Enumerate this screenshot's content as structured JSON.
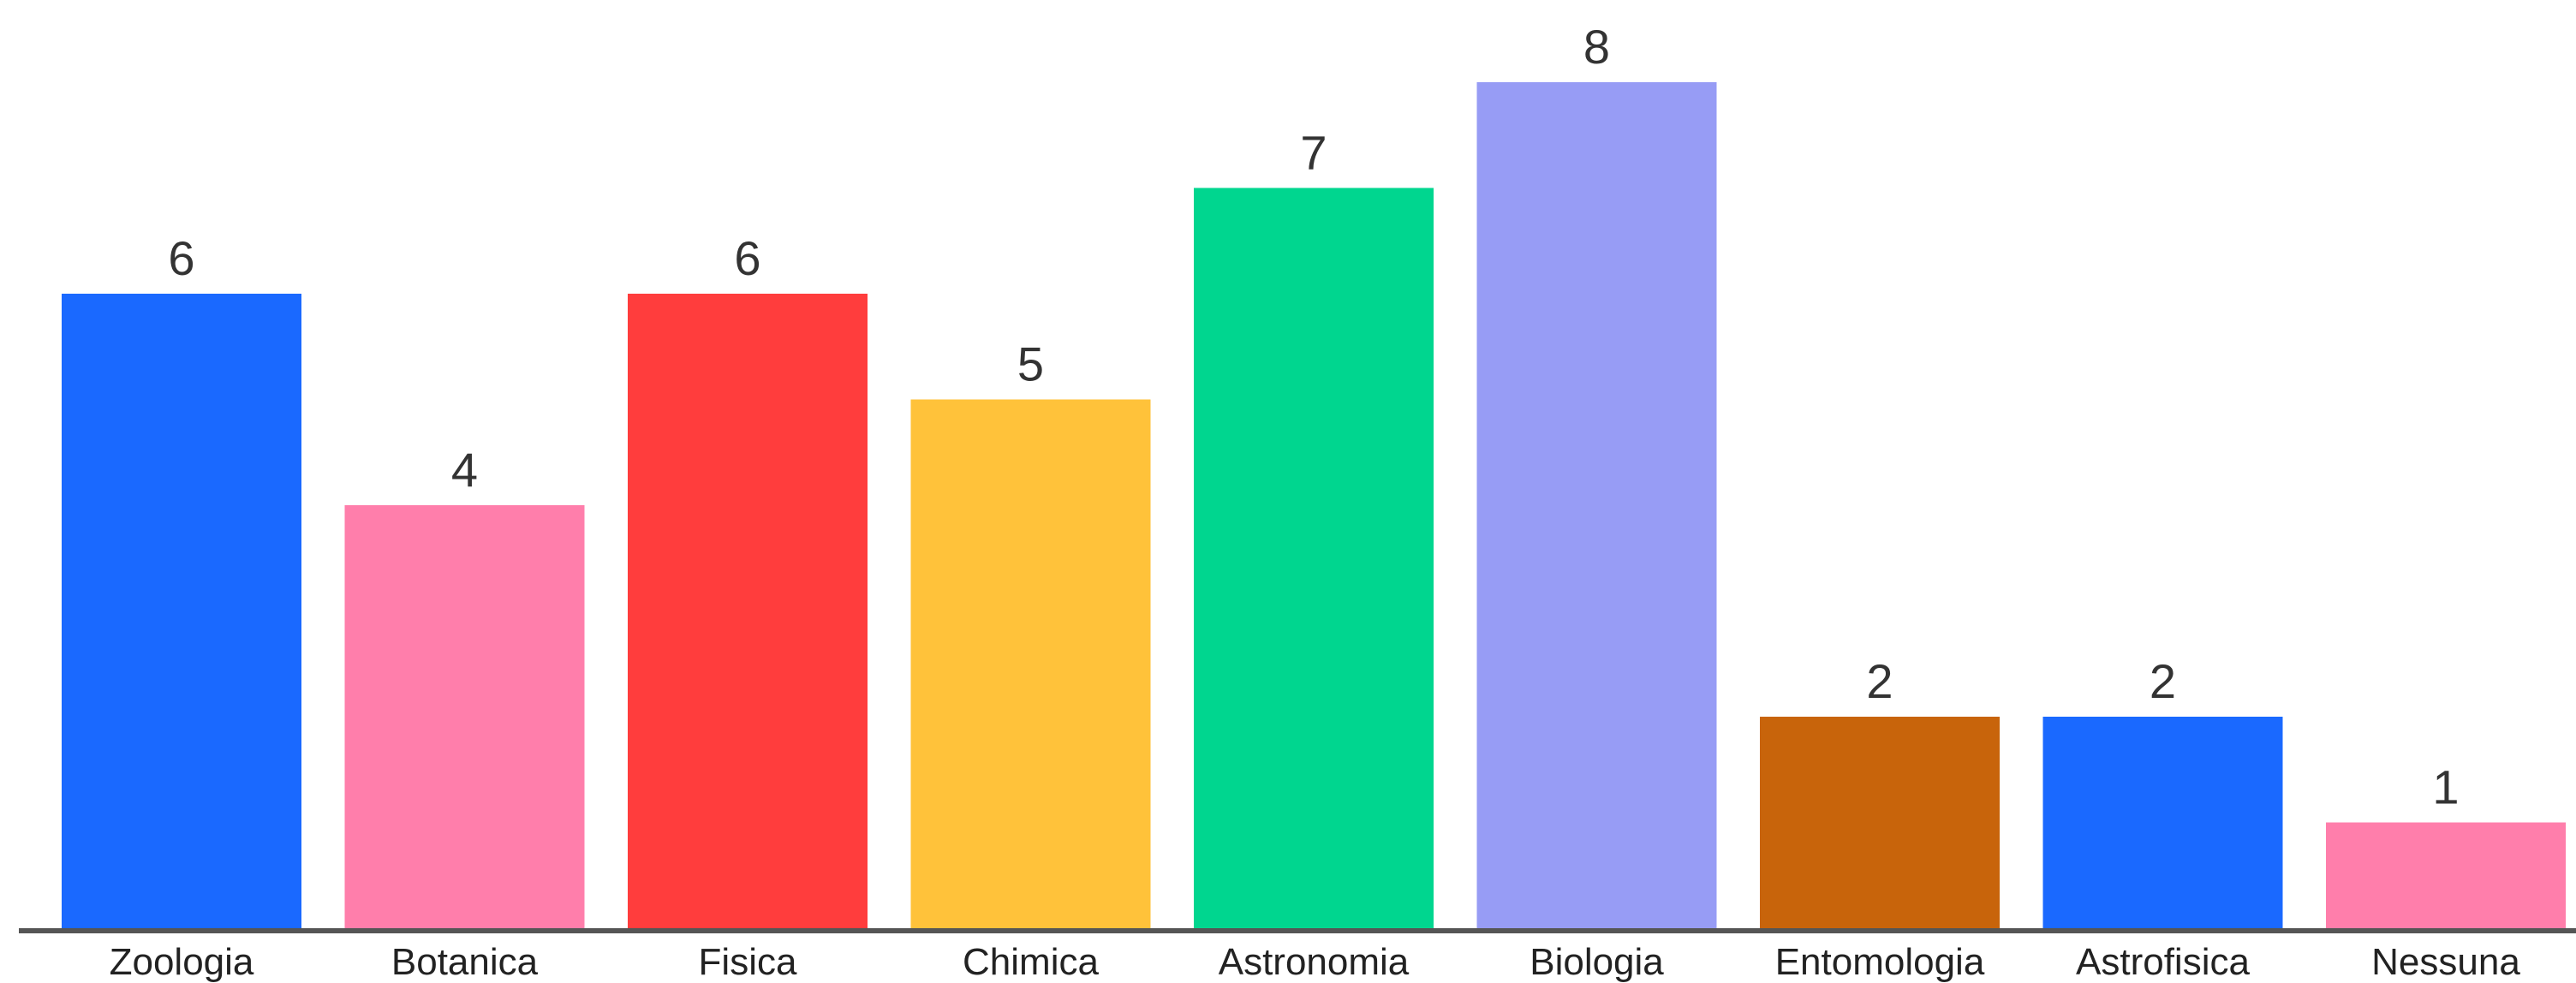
{
  "chart_data": {
    "type": "bar",
    "categories": [
      "Zoologia",
      "Botanica",
      "Fisica",
      "Chimica",
      "Astronomia",
      "Biologia",
      "Entomologia",
      "Astrofisica",
      "Nessuna"
    ],
    "values": [
      6,
      4,
      6,
      5,
      7,
      8,
      2,
      2,
      1
    ],
    "colors": [
      "#1a69ff",
      "#ff7eab",
      "#ff3d3d",
      "#ffc23a",
      "#00d68f",
      "#979cf5",
      "#c8640b",
      "#1a69ff",
      "#ff7eab"
    ],
    "axis_color": "#555555",
    "ylim": [
      0,
      8
    ],
    "grid": false,
    "legend": "none",
    "data_labels": true
  }
}
